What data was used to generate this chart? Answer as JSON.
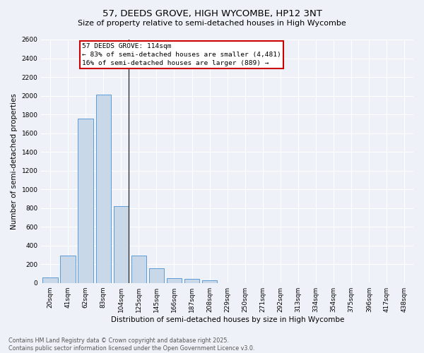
{
  "title": "57, DEEDS GROVE, HIGH WYCOMBE, HP12 3NT",
  "subtitle": "Size of property relative to semi-detached houses in High Wycombe",
  "xlabel": "Distribution of semi-detached houses by size in High Wycombe",
  "ylabel": "Number of semi-detached properties",
  "categories": [
    "20sqm",
    "41sqm",
    "62sqm",
    "83sqm",
    "104sqm",
    "125sqm",
    "145sqm",
    "166sqm",
    "187sqm",
    "208sqm",
    "229sqm",
    "250sqm",
    "271sqm",
    "292sqm",
    "313sqm",
    "334sqm",
    "354sqm",
    "375sqm",
    "396sqm",
    "417sqm",
    "438sqm"
  ],
  "values": [
    55,
    295,
    1755,
    2010,
    820,
    290,
    155,
    50,
    40,
    30,
    0,
    0,
    0,
    0,
    0,
    0,
    0,
    0,
    0,
    0,
    0
  ],
  "bar_color": "#c8d8e8",
  "bar_edge_color": "#5b9bd5",
  "marker_line_index": 4,
  "annotation_title": "57 DEEDS GROVE: 114sqm",
  "annotation_line1": "← 83% of semi-detached houses are smaller (4,481)",
  "annotation_line2": "16% of semi-detached houses are larger (889) →",
  "annotation_box_facecolor": "#ffffff",
  "annotation_box_edgecolor": "#cc0000",
  "ylim": [
    0,
    2600
  ],
  "yticks": [
    0,
    200,
    400,
    600,
    800,
    1000,
    1200,
    1400,
    1600,
    1800,
    2000,
    2200,
    2400,
    2600
  ],
  "background_color": "#eef2f8",
  "grid_color": "#ffffff",
  "footer_line1": "Contains HM Land Registry data © Crown copyright and database right 2025.",
  "footer_line2": "Contains public sector information licensed under the Open Government Licence v3.0.",
  "title_fontsize": 9.5,
  "subtitle_fontsize": 8.0,
  "xlabel_fontsize": 7.5,
  "ylabel_fontsize": 7.5,
  "tick_fontsize": 6.5,
  "annotation_fontsize": 6.8,
  "footer_fontsize": 5.8
}
